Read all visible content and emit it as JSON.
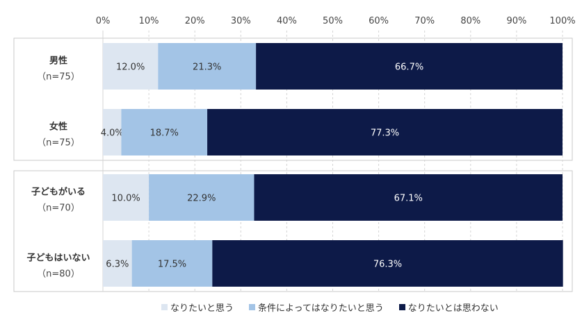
{
  "chart_data": {
    "type": "bar",
    "orientation": "horizontal",
    "stacked": "percent",
    "xlim": [
      0,
      100
    ],
    "x_ticks": [
      "0%",
      "10%",
      "20%",
      "30%",
      "40%",
      "50%",
      "60%",
      "70%",
      "80%",
      "90%",
      "100%"
    ],
    "categories": [
      {
        "label": "男性",
        "n": "（n=75）",
        "group": 0
      },
      {
        "label": "女性",
        "n": "（n=75）",
        "group": 0
      },
      {
        "label": "子どもがいる",
        "n": "（n=70）",
        "group": 1
      },
      {
        "label": "子どもはいない",
        "n": "（n=80）",
        "group": 1
      }
    ],
    "series": [
      {
        "name": "なりたいと思う",
        "color": "#dde6f1",
        "label_color": "#333333",
        "values": [
          12.0,
          4.0,
          10.0,
          6.3
        ],
        "labels": [
          "12.0%",
          "4.0%",
          "10.0%",
          "6.3%"
        ]
      },
      {
        "name": "条件によってはなりたいと思う",
        "color": "#a3c4e6",
        "label_color": "#333333",
        "values": [
          21.3,
          18.7,
          22.9,
          17.5
        ],
        "labels": [
          "21.3%",
          "18.7%",
          "22.9%",
          "17.5%"
        ]
      },
      {
        "name": "なりたいとは思わない",
        "color": "#0d1a48",
        "label_color": "#ffffff",
        "values": [
          66.7,
          77.3,
          67.1,
          76.3
        ],
        "labels": [
          "66.7%",
          "77.3%",
          "67.1%",
          "76.3%"
        ]
      }
    ],
    "grid": true,
    "legend_position": "bottom"
  }
}
